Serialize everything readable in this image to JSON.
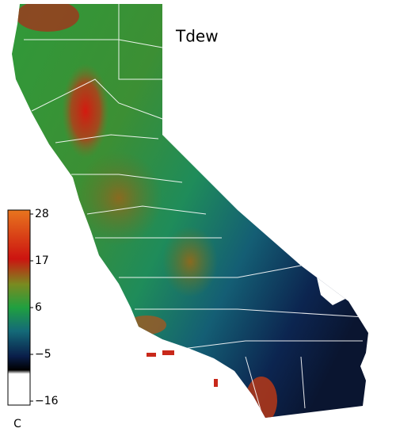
{
  "map": {
    "title": "Tdew",
    "colorbar": {
      "lim": [
        -16,
        28
      ],
      "ticks": [
        28,
        17,
        6,
        {
          "value": -5,
          "label": "−5"
        },
        {
          "value": -16,
          "label": "−16"
        }
      ],
      "unit": "C"
    }
  }
}
